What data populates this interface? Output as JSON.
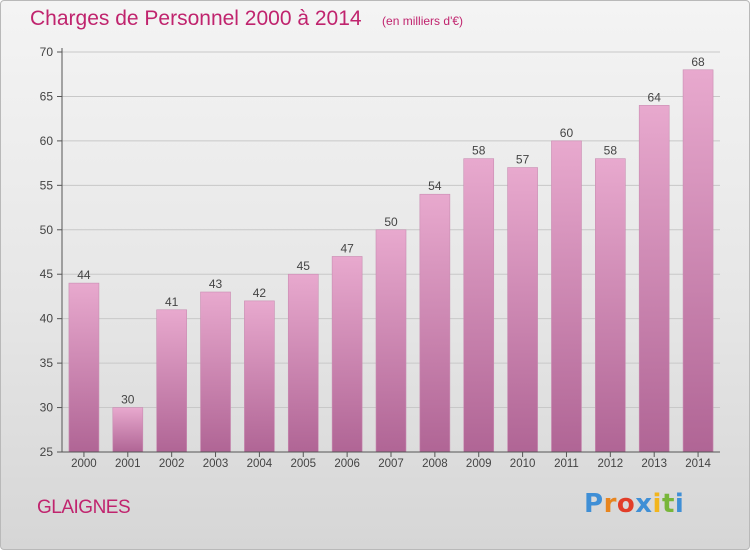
{
  "header": {
    "title": "Charges de Personnel 2000 à 2014",
    "subtitle": "(en milliers d'€)"
  },
  "footer": {
    "commune": "GLAIGNES",
    "logo_text": "Proxiti",
    "logo_colors": [
      "#3f8fd6",
      "#e8851e",
      "#e23d28",
      "#3f8fd6",
      "#f2b51c",
      "#78b63a",
      "#3f8fd6"
    ]
  },
  "colors": {
    "title": "#c0246e",
    "bar_top": "#e8a9ce",
    "bar_bottom": "#b06595",
    "axis": "#555555",
    "grid": "#c8c8c8"
  },
  "chart_data": {
    "type": "bar",
    "categories": [
      "2000",
      "2001",
      "2002",
      "2003",
      "2004",
      "2005",
      "2006",
      "2007",
      "2008",
      "2009",
      "2010",
      "2011",
      "2012",
      "2013",
      "2014"
    ],
    "values": [
      44,
      30,
      41,
      43,
      42,
      45,
      47,
      50,
      54,
      58,
      57,
      60,
      58,
      64,
      68
    ],
    "ylim": [
      25,
      70
    ],
    "yticks": [
      25,
      30,
      35,
      40,
      45,
      50,
      55,
      60,
      65,
      70
    ],
    "grid": true,
    "data_labels": true
  }
}
